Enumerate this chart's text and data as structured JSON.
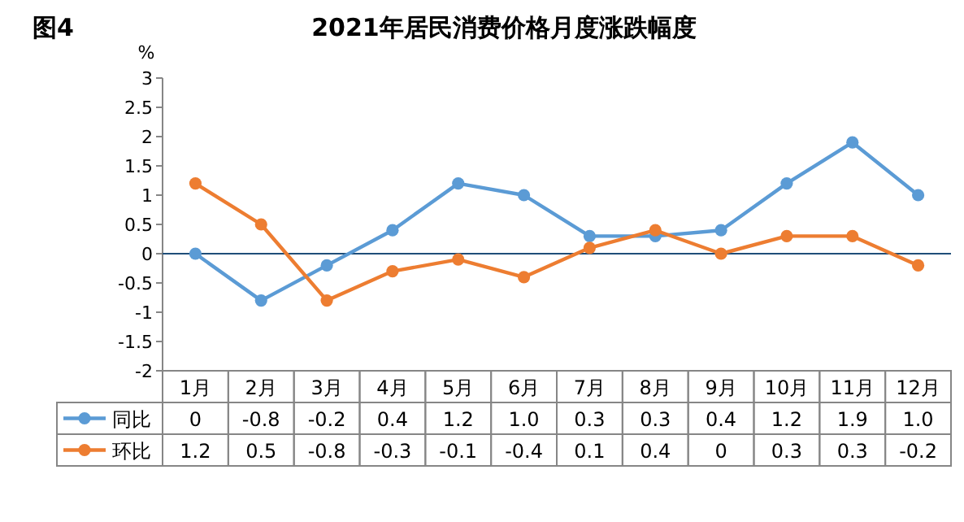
{
  "chart_data": {
    "type": "line",
    "title": "2021年居民消费价格月度涨跌幅度",
    "annotations": [
      "图4"
    ],
    "ylabel": "%",
    "categories": [
      "1月",
      "2月",
      "3月",
      "4月",
      "5月",
      "6月",
      "7月",
      "8月",
      "9月",
      "10月",
      "11月",
      "12月"
    ],
    "series": [
      {
        "name": "同比",
        "color": "#5b9bd5",
        "values": [
          0,
          -0.8,
          -0.2,
          0.4,
          1.2,
          1.0,
          0.3,
          0.3,
          0.4,
          1.2,
          1.9,
          1.0
        ],
        "value_labels": [
          "0",
          "-0.8",
          "-0.2",
          "0.4",
          "1.2",
          "1.0",
          "0.3",
          "0.3",
          "0.4",
          "1.2",
          "1.9",
          "1.0"
        ]
      },
      {
        "name": "环比",
        "color": "#ed7d31",
        "values": [
          1.2,
          0.5,
          -0.8,
          -0.3,
          -0.1,
          -0.4,
          0.1,
          0.4,
          0,
          0.3,
          0.3,
          -0.2
        ],
        "value_labels": [
          "1.2",
          "0.5",
          "-0.8",
          "-0.3",
          "-0.1",
          "-0.4",
          "0.1",
          "0.4",
          "0",
          "0.3",
          "0.3",
          "-0.2"
        ]
      }
    ],
    "ylim": [
      -2,
      3
    ],
    "yticks": [
      3,
      2.5,
      2,
      1.5,
      1,
      0.5,
      0,
      -0.5,
      -1,
      -1.5,
      -2
    ],
    "ref_lines": [
      {
        "axis": "y",
        "value": 0,
        "color": "#1f4e79"
      }
    ],
    "marker": "circle",
    "line_style": "solid",
    "legend": "bottom",
    "grid": false
  }
}
